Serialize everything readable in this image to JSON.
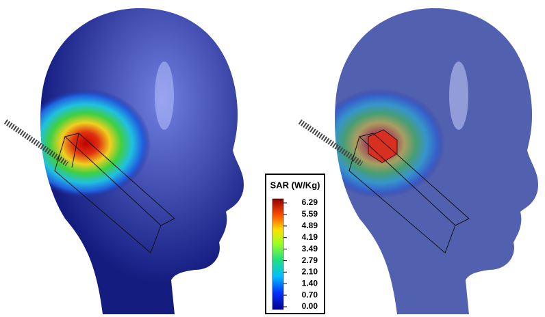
{
  "colorbar": {
    "title": "SAR (W/Kg)",
    "ticks": [
      6.29,
      5.59,
      4.89,
      4.19,
      3.49,
      2.79,
      {
        "value": 2.1,
        "label": "2.10"
      },
      {
        "value": 1.4,
        "label": "1.40"
      },
      {
        "value": 0.7,
        "label": "0.70"
      },
      {
        "value": 0,
        "label": "0.00"
      }
    ]
  }
}
